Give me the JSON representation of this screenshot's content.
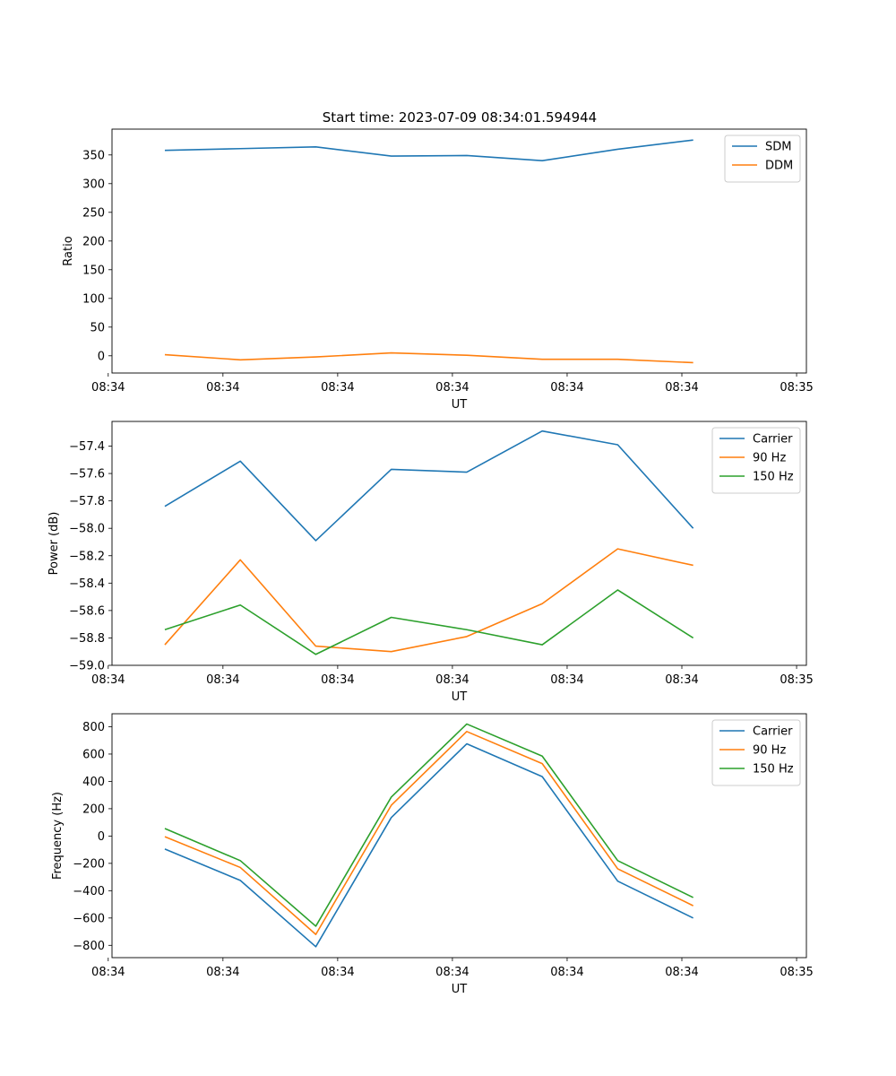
{
  "figure": {
    "title": "Start time: 2023-07-09 08:34:01.594944"
  },
  "colors": {
    "blue": "#1f77b4",
    "orange": "#ff7f0e",
    "green": "#2ca02c"
  },
  "chart_data": [
    {
      "type": "line",
      "title": "Start time: 2023-07-09 08:34:01.594944",
      "xlabel": "UT",
      "ylabel": "Ratio",
      "x_tick_labels": [
        "08:34",
        "08:34",
        "08:34",
        "08:34",
        "08:34",
        "08:34",
        "08:35"
      ],
      "x": [
        1,
        2,
        3,
        4,
        5,
        6,
        7,
        8
      ],
      "xlim": [
        0.3,
        9.5
      ],
      "x_ticks": [
        0.25,
        1.77,
        3.29,
        4.81,
        6.33,
        7.85,
        9.37
      ],
      "ylim": [
        -30,
        395
      ],
      "y_ticks": [
        0,
        50,
        100,
        150,
        200,
        250,
        300,
        350
      ],
      "legend": "top-right",
      "series": [
        {
          "name": "SDM",
          "color": "blue",
          "values": [
            358,
            361,
            364,
            348,
            349,
            340,
            360,
            376
          ]
        },
        {
          "name": "DDM",
          "color": "orange",
          "values": [
            2,
            -7,
            -2,
            5,
            1,
            -6,
            -6,
            -12
          ]
        }
      ]
    },
    {
      "type": "line",
      "xlabel": "UT",
      "ylabel": "Power (dB)",
      "x_tick_labels": [
        "08:34",
        "08:34",
        "08:34",
        "08:34",
        "08:34",
        "08:34",
        "08:35"
      ],
      "x": [
        1,
        2,
        3,
        4,
        5,
        6,
        7,
        8
      ],
      "xlim": [
        0.3,
        9.5
      ],
      "x_ticks": [
        0.25,
        1.77,
        3.29,
        4.81,
        6.33,
        7.85,
        9.37
      ],
      "ylim": [
        -59.0,
        -57.22
      ],
      "y_ticks": [
        -59.0,
        -58.8,
        -58.6,
        -58.4,
        -58.2,
        -58.0,
        -57.8,
        -57.6,
        -57.4
      ],
      "y_tick_labels": [
        "−59.0",
        "−58.8",
        "−58.6",
        "−58.4",
        "−58.2",
        "−58.0",
        "−57.8",
        "−57.6",
        "−57.4"
      ],
      "legend": "top-right",
      "series": [
        {
          "name": "Carrier",
          "color": "blue",
          "values": [
            -57.84,
            -57.51,
            -58.09,
            -57.57,
            -57.59,
            -57.29,
            -57.39,
            -58.0
          ]
        },
        {
          "name": "90 Hz",
          "color": "orange",
          "values": [
            -58.85,
            -58.23,
            -58.86,
            -58.9,
            -58.79,
            -58.55,
            -58.15,
            -58.27
          ]
        },
        {
          "name": "150 Hz",
          "color": "green",
          "values": [
            -58.74,
            -58.56,
            -58.92,
            -58.65,
            -58.74,
            -58.85,
            -58.45,
            -58.8
          ]
        }
      ]
    },
    {
      "type": "line",
      "xlabel": "UT",
      "ylabel": "Frequency (Hz)",
      "x_tick_labels": [
        "08:34",
        "08:34",
        "08:34",
        "08:34",
        "08:34",
        "08:34",
        "08:35"
      ],
      "x": [
        1,
        2,
        3,
        4,
        5,
        6,
        7,
        8
      ],
      "xlim": [
        0.3,
        9.5
      ],
      "x_ticks": [
        0.25,
        1.77,
        3.29,
        4.81,
        6.33,
        7.85,
        9.37
      ],
      "ylim": [
        -890,
        895
      ],
      "y_ticks": [
        -800,
        -600,
        -400,
        -200,
        0,
        200,
        400,
        600,
        800
      ],
      "y_tick_labels": [
        "−800",
        "−600",
        "−400",
        "−200",
        "0",
        "200",
        "400",
        "600",
        "800"
      ],
      "legend": "top-right",
      "series": [
        {
          "name": "Carrier",
          "color": "blue",
          "values": [
            -95,
            -325,
            -810,
            135,
            675,
            435,
            -330,
            -600
          ]
        },
        {
          "name": "90 Hz",
          "color": "orange",
          "values": [
            -5,
            -230,
            -720,
            225,
            765,
            530,
            -240,
            -510
          ]
        },
        {
          "name": "150 Hz",
          "color": "green",
          "values": [
            55,
            -180,
            -660,
            285,
            820,
            585,
            -180,
            -450
          ]
        }
      ]
    }
  ]
}
